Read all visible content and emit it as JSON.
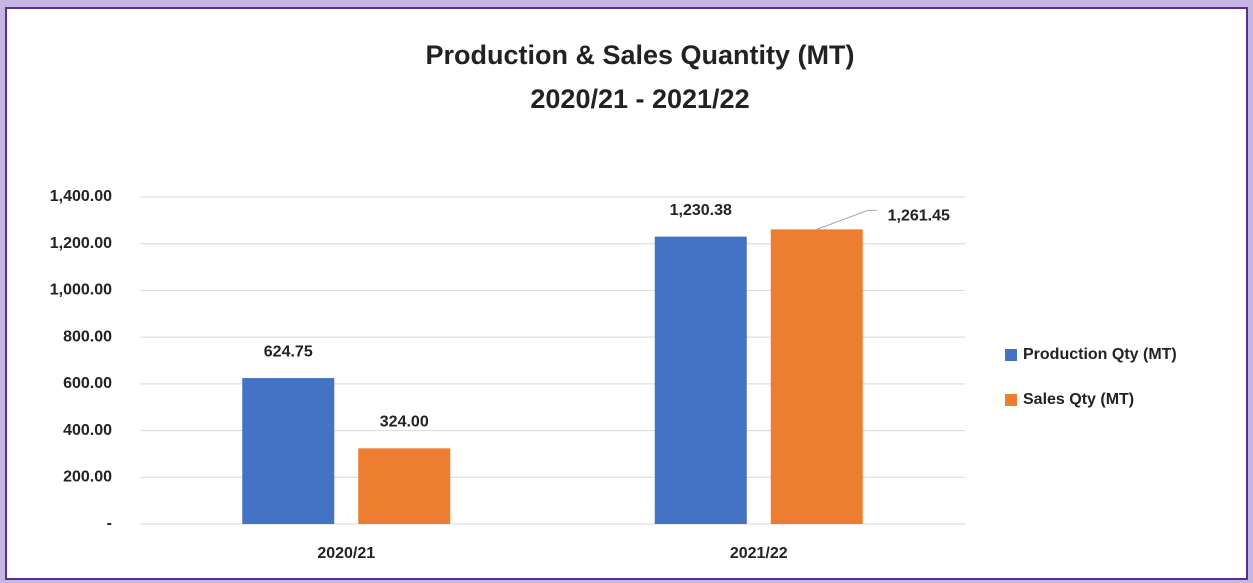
{
  "chart_data": {
    "type": "bar",
    "title": "Production & Sales Quantity (MT)",
    "subtitle": "2020/21 - 2021/22",
    "categories": [
      "2020/21",
      "2021/22"
    ],
    "series": [
      {
        "name": "Production Qty (MT)",
        "color": "#4472c4",
        "values": [
          624.75,
          1230.38
        ],
        "value_labels": [
          "624.75",
          "1,230.38"
        ]
      },
      {
        "name": "Sales Qty (MT)",
        "color": "#ed7d31",
        "values": [
          324,
          1261.45
        ],
        "value_labels": [
          "324.00",
          "1,261.45"
        ]
      }
    ],
    "ylim": [
      0,
      1400
    ],
    "yticks": [
      {
        "value": 0,
        "label": "-"
      },
      {
        "value": 200,
        "label": "200.00"
      },
      {
        "value": 400,
        "label": "400.00"
      },
      {
        "value": 600,
        "label": "600.00"
      },
      {
        "value": 800,
        "label": "800.00"
      },
      {
        "value": 1000,
        "label": "1,000.00"
      },
      {
        "value": 1200,
        "label": "1,200.00"
      },
      {
        "value": 1400,
        "label": "1,400.00"
      }
    ],
    "grid": true,
    "legend": "right"
  }
}
